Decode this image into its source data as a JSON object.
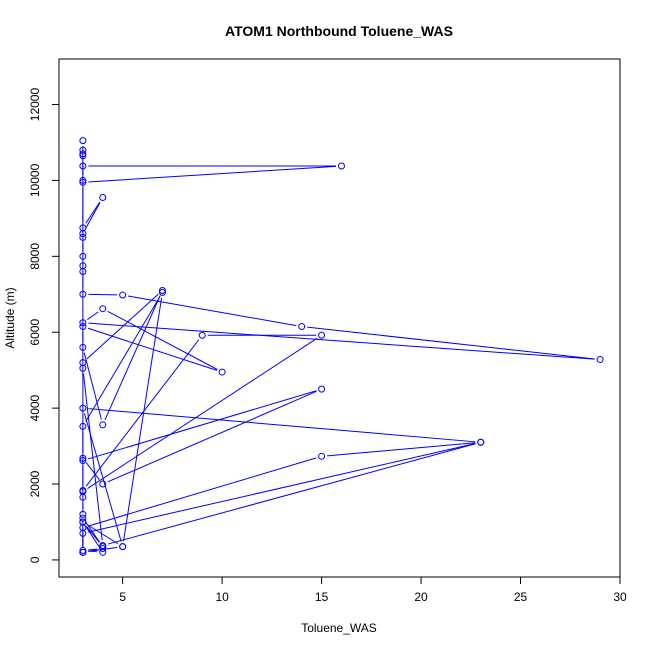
{
  "chart_data": {
    "type": "line",
    "title": "ATOM1 Northbound Toluene_WAS",
    "xlabel": "Toluene_WAS",
    "ylabel": "Altitude (m)",
    "xlim": [
      1.8,
      30.0
    ],
    "ylim": [
      -450,
      13200
    ],
    "x_ticks": [
      5,
      10,
      15,
      20,
      25,
      30
    ],
    "y_ticks": [
      0,
      2000,
      4000,
      6000,
      8000,
      10000,
      12000
    ],
    "grid": false,
    "legend": "none",
    "series_color": "#0000ff",
    "marker": "open-circle",
    "series": [
      {
        "x": [
          3,
          3,
          3,
          3,
          3,
          3,
          3,
          3,
          16,
          3,
          3,
          4,
          3,
          3,
          3,
          3,
          3,
          3,
          5,
          14,
          29,
          3,
          4,
          10,
          3,
          3,
          4,
          7,
          3,
          3,
          4,
          23,
          3,
          5,
          7,
          3,
          3,
          4,
          15,
          3,
          3,
          9,
          15,
          3,
          3,
          3,
          4,
          3,
          5,
          3,
          3,
          15,
          23,
          3,
          3,
          4,
          3,
          4,
          3,
          3,
          3
        ],
        "y": [
          200,
          1200,
          11050,
          10800,
          10700,
          10650,
          10000,
          10380,
          10380,
          9950,
          8750,
          9550,
          8600,
          8500,
          8000,
          7750,
          7600,
          7000,
          6980,
          6150,
          5280,
          6250,
          6620,
          4950,
          6150,
          5600,
          3560,
          7100,
          5200,
          5050,
          380,
          3100,
          4000,
          350,
          7050,
          3520,
          2680,
          2000,
          4500,
          2620,
          1830,
          5920,
          5920,
          1800,
          1650,
          1100,
          350,
          1000,
          350,
          200,
          850,
          2730,
          3100,
          700,
          200,
          300,
          250,
          200,
          1000,
          1000,
          200
        ]
      }
    ]
  }
}
